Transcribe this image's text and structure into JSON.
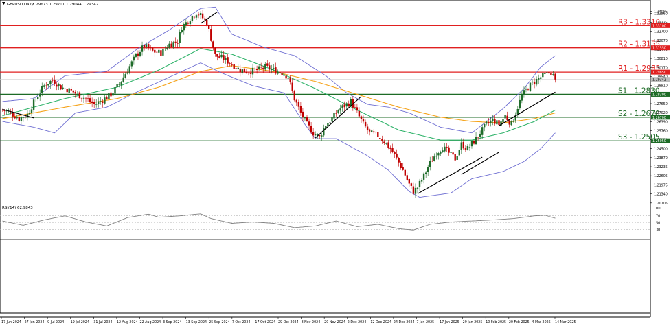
{
  "header": {
    "symbol_label": "GBPUSD,Daily",
    "ohlc": "1.29673 1.29701 1.29044 1.29342"
  },
  "rsi_panel": {
    "label": "RSI(14) 62.9843",
    "levels": [
      70,
      50,
      30
    ],
    "value": 62.9843
  },
  "colors": {
    "bull": "#1f6b2a",
    "bear": "#c00000",
    "bollinger": "#6e6ed2",
    "sma_fast": "#2fb36a",
    "sma_slow": "#f5a31a",
    "resistance": "#e02020",
    "support": "#1d6b26",
    "trend": "#000000",
    "rsi": "#808080",
    "current_price_line": "#cfcfcf"
  },
  "chart_data": {
    "type": "candlestick",
    "title": "GBPUSD,Daily",
    "ylim": [
      1.206,
      1.347
    ],
    "price_ticks": [
      "1.34095",
      "1.33960",
      "1.33335",
      "1.32700",
      "1.32070",
      "1.31445",
      "1.30810",
      "1.30170",
      "1.29540",
      "1.28910",
      "1.28280",
      "1.27650",
      "1.27020",
      "1.26390",
      "1.25760",
      "1.25130",
      "1.24500",
      "1.23870",
      "1.23235",
      "1.22605",
      "1.21975",
      "1.21340",
      "1.20705"
    ],
    "x_labels": [
      "17 Jun 2024",
      "27 Jun 2024",
      "9 Jul 2024",
      "19 Jul 2024",
      "31 Jul 2024",
      "12 Aug 2024",
      "22 Aug 2024",
      "3 Sep 2024",
      "13 Sep 2024",
      "25 Sep 2024",
      "7 Oct 2024",
      "17 Oct 2024",
      "29 Oct 2024",
      "8 Nov 2024",
      "20 Nov 2024",
      "2 Dec 2024",
      "12 Dec 2024",
      "24 Dec 2024",
      "7 Jan 2025",
      "17 Jan 2025",
      "29 Jan 2025",
      "10 Feb 2025",
      "20 Feb 2025",
      "4 Mar 2025",
      "14 Mar 2025"
    ],
    "price_tags": [
      {
        "value": 1.331,
        "text": "1.33100",
        "kind": "resistance"
      },
      {
        "value": 1.3155,
        "text": "1.31550",
        "kind": "resistance"
      },
      {
        "value": 1.2985,
        "text": "1.29850",
        "kind": "resistance"
      },
      {
        "value": 1.29342,
        "text": "1.29342",
        "kind": "current"
      },
      {
        "value": 1.283,
        "text": "1.28300",
        "kind": "support"
      },
      {
        "value": 1.267,
        "text": "1.26700",
        "kind": "support"
      },
      {
        "value": 1.2505,
        "text": "1.25050",
        "kind": "support"
      }
    ],
    "levels": [
      {
        "name": "R3 - 1.3310",
        "value": 1.331,
        "kind": "resistance"
      },
      {
        "name": "R2 - 1.3155",
        "value": 1.3155,
        "kind": "resistance"
      },
      {
        "name": "R1 - 1.2985",
        "value": 1.2985,
        "kind": "resistance"
      },
      {
        "name": "S1 - 1.2830",
        "value": 1.283,
        "kind": "support"
      },
      {
        "name": "S2 - 1.2670",
        "value": 1.267,
        "kind": "support"
      },
      {
        "name": "S3 - 1.2505",
        "value": 1.2505,
        "kind": "support"
      }
    ],
    "current_price": 1.29342,
    "close_path": [
      [
        0,
        1.272
      ],
      [
        4,
        1.27
      ],
      [
        8,
        1.266
      ],
      [
        12,
        1.269
      ],
      [
        16,
        1.28
      ],
      [
        20,
        1.289
      ],
      [
        24,
        1.293
      ],
      [
        28,
        1.288
      ],
      [
        32,
        1.286
      ],
      [
        36,
        1.283
      ],
      [
        40,
        1.28
      ],
      [
        44,
        1.276
      ],
      [
        48,
        1.279
      ],
      [
        52,
        1.283
      ],
      [
        56,
        1.29
      ],
      [
        60,
        1.3
      ],
      [
        64,
        1.31
      ],
      [
        68,
        1.317
      ],
      [
        72,
        1.313
      ],
      [
        76,
        1.312
      ],
      [
        80,
        1.318
      ],
      [
        84,
        1.32
      ],
      [
        86,
        1.33
      ],
      [
        90,
        1.336
      ],
      [
        93,
        1.34
      ],
      [
        95,
        1.338
      ],
      [
        98,
        1.333
      ],
      [
        100,
        1.322
      ],
      [
        102,
        1.31
      ],
      [
        106,
        1.308
      ],
      [
        110,
        1.304
      ],
      [
        114,
        1.3
      ],
      [
        118,
        1.299
      ],
      [
        122,
        1.3
      ],
      [
        126,
        1.302
      ],
      [
        130,
        1.3
      ],
      [
        134,
        1.298
      ],
      [
        137,
        1.295
      ],
      [
        140,
        1.28
      ],
      [
        143,
        1.27
      ],
      [
        146,
        1.262
      ],
      [
        149,
        1.256
      ],
      [
        152,
        1.253
      ],
      [
        155,
        1.262
      ],
      [
        158,
        1.266
      ],
      [
        161,
        1.272
      ],
      [
        164,
        1.275
      ],
      [
        167,
        1.278
      ],
      [
        170,
        1.27
      ],
      [
        173,
        1.262
      ],
      [
        176,
        1.256
      ],
      [
        180,
        1.254
      ],
      [
        183,
        1.25
      ],
      [
        186,
        1.245
      ],
      [
        189,
        1.238
      ],
      [
        192,
        1.23
      ],
      [
        195,
        1.22
      ],
      [
        197,
        1.215
      ],
      [
        199,
        1.218
      ],
      [
        202,
        1.226
      ],
      [
        205,
        1.235
      ],
      [
        208,
        1.242
      ],
      [
        211,
        1.246
      ],
      [
        214,
        1.242
      ],
      [
        217,
        1.238
      ],
      [
        220,
        1.248
      ],
      [
        223,
        1.245
      ],
      [
        226,
        1.25
      ],
      [
        229,
        1.256
      ],
      [
        232,
        1.262
      ],
      [
        235,
        1.265
      ],
      [
        238,
        1.262
      ],
      [
        241,
        1.268
      ],
      [
        244,
        1.262
      ],
      [
        246,
        1.27
      ],
      [
        249,
        1.282
      ],
      [
        252,
        1.288
      ],
      [
        255,
        1.292
      ],
      [
        258,
        1.295
      ],
      [
        261,
        1.297
      ],
      [
        263,
        1.2985
      ],
      [
        265,
        1.2934
      ]
    ],
    "sma_fast_path": [
      [
        0,
        1.268
      ],
      [
        30,
        1.28
      ],
      [
        55,
        1.288
      ],
      [
        75,
        1.3
      ],
      [
        95,
        1.315
      ],
      [
        110,
        1.311
      ],
      [
        130,
        1.3
      ],
      [
        150,
        1.287
      ],
      [
        170,
        1.272
      ],
      [
        190,
        1.258
      ],
      [
        210,
        1.251
      ],
      [
        225,
        1.251
      ],
      [
        240,
        1.256
      ],
      [
        255,
        1.264
      ],
      [
        265,
        1.272
      ]
    ],
    "sma_slow_path": [
      [
        0,
        1.266
      ],
      [
        30,
        1.274
      ],
      [
        55,
        1.28
      ],
      [
        75,
        1.288
      ],
      [
        95,
        1.299
      ],
      [
        110,
        1.303
      ],
      [
        130,
        1.299
      ],
      [
        150,
        1.292
      ],
      [
        170,
        1.283
      ],
      [
        190,
        1.274
      ],
      [
        210,
        1.267
      ],
      [
        225,
        1.264
      ],
      [
        240,
        1.263
      ],
      [
        255,
        1.266
      ],
      [
        265,
        1.27
      ]
    ],
    "bb_upper_path": [
      [
        0,
        1.278
      ],
      [
        15,
        1.28
      ],
      [
        30,
        1.296
      ],
      [
        50,
        1.299
      ],
      [
        65,
        1.315
      ],
      [
        80,
        1.328
      ],
      [
        95,
        1.343
      ],
      [
        102,
        1.344
      ],
      [
        110,
        1.325
      ],
      [
        125,
        1.316
      ],
      [
        140,
        1.31
      ],
      [
        155,
        1.296
      ],
      [
        165,
        1.284
      ],
      [
        175,
        1.276
      ],
      [
        185,
        1.274
      ],
      [
        195,
        1.27
      ],
      [
        210,
        1.26
      ],
      [
        225,
        1.256
      ],
      [
        240,
        1.273
      ],
      [
        250,
        1.287
      ],
      [
        258,
        1.302
      ],
      [
        265,
        1.31
      ]
    ],
    "bb_lower_path": [
      [
        0,
        1.264
      ],
      [
        15,
        1.26
      ],
      [
        25,
        1.256
      ],
      [
        35,
        1.27
      ],
      [
        50,
        1.274
      ],
      [
        65,
        1.285
      ],
      [
        80,
        1.295
      ],
      [
        95,
        1.305
      ],
      [
        105,
        1.298
      ],
      [
        120,
        1.289
      ],
      [
        135,
        1.284
      ],
      [
        145,
        1.262
      ],
      [
        150,
        1.252
      ],
      [
        160,
        1.252
      ],
      [
        175,
        1.24
      ],
      [
        185,
        1.23
      ],
      [
        195,
        1.215
      ],
      [
        200,
        1.211
      ],
      [
        215,
        1.214
      ],
      [
        225,
        1.224
      ],
      [
        240,
        1.229
      ],
      [
        250,
        1.236
      ],
      [
        258,
        1.245
      ],
      [
        265,
        1.256
      ]
    ],
    "rsi_path": [
      [
        0,
        55
      ],
      [
        10,
        42
      ],
      [
        20,
        58
      ],
      [
        30,
        70
      ],
      [
        40,
        52
      ],
      [
        50,
        40
      ],
      [
        60,
        65
      ],
      [
        70,
        75
      ],
      [
        75,
        66
      ],
      [
        85,
        70
      ],
      [
        95,
        76
      ],
      [
        100,
        62
      ],
      [
        110,
        48
      ],
      [
        120,
        52
      ],
      [
        130,
        48
      ],
      [
        140,
        35
      ],
      [
        150,
        40
      ],
      [
        160,
        55
      ],
      [
        170,
        38
      ],
      [
        180,
        45
      ],
      [
        190,
        32
      ],
      [
        197,
        28
      ],
      [
        205,
        45
      ],
      [
        215,
        52
      ],
      [
        225,
        55
      ],
      [
        235,
        58
      ],
      [
        245,
        62
      ],
      [
        255,
        70
      ],
      [
        260,
        72
      ],
      [
        265,
        63
      ]
    ],
    "trendlines": [
      [
        0,
        1.2725,
        15,
        1.2665
      ],
      [
        95,
        1.3325,
        103,
        1.3405
      ],
      [
        150,
        1.2525,
        172,
        1.2815
      ],
      [
        199,
        1.2135,
        230,
        1.239
      ],
      [
        220,
        1.227,
        238,
        1.2425
      ],
      [
        238,
        1.261,
        265,
        1.2845
      ]
    ]
  }
}
